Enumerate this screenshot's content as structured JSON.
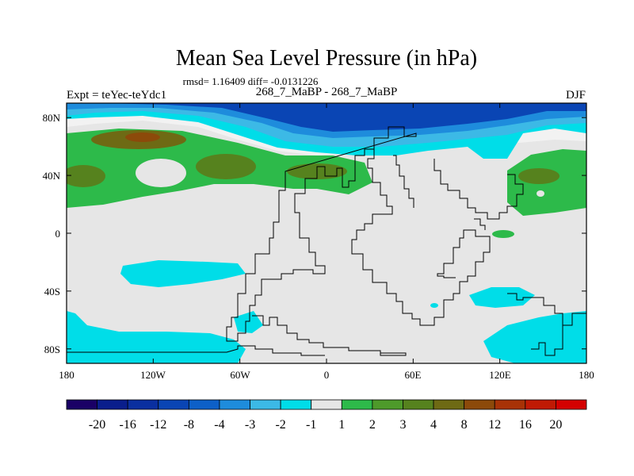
{
  "chart_data": {
    "type": "heatmap",
    "title": "Mean Sea Level Pressure (in hPa)",
    "subtitle": "rmsd= 1.16409 diff= -0.0131226",
    "left_label": "Expt = teYec-teYdc1",
    "center_label": "268_7_MaBP - 268_7_MaBP",
    "right_label": "DJF",
    "x_ticks": [
      "180",
      "120W",
      "60W",
      "0",
      "60E",
      "120E",
      "180"
    ],
    "x_values": [
      -180,
      -120,
      -60,
      0,
      60,
      120,
      180
    ],
    "y_ticks": [
      "80N",
      "40N",
      "0",
      "40S",
      "80S"
    ],
    "y_values": [
      80,
      40,
      0,
      -40,
      -80
    ],
    "xlim": [
      -180,
      180
    ],
    "ylim": [
      -90,
      90
    ],
    "colorbar": {
      "labels": [
        "-20",
        "-16",
        "-12",
        "-8",
        "-4",
        "-3",
        "-2",
        "-1",
        "1",
        "2",
        "3",
        "4",
        "8",
        "12",
        "16",
        "20"
      ],
      "colors": [
        "#1a0066",
        "#0a1e8c",
        "#0a2fa0",
        "#0a45b4",
        "#0d60c8",
        "#1e8cdc",
        "#3cb9e6",
        "#00dde8",
        "#e6e6e6",
        "#2dba4a",
        "#4e9a2a",
        "#56821e",
        "#6e6a14",
        "#8c4a0a",
        "#a83206",
        "#c01a04",
        "#d40000"
      ]
    },
    "fields": {
      "north_polar_band": "-12 to -3",
      "northern_midlatitude_band": "1 to 4",
      "tropics": "-1 to 1",
      "southern_patches": "-2 to -1",
      "southern_polar_cells": "-2 to -1"
    }
  }
}
